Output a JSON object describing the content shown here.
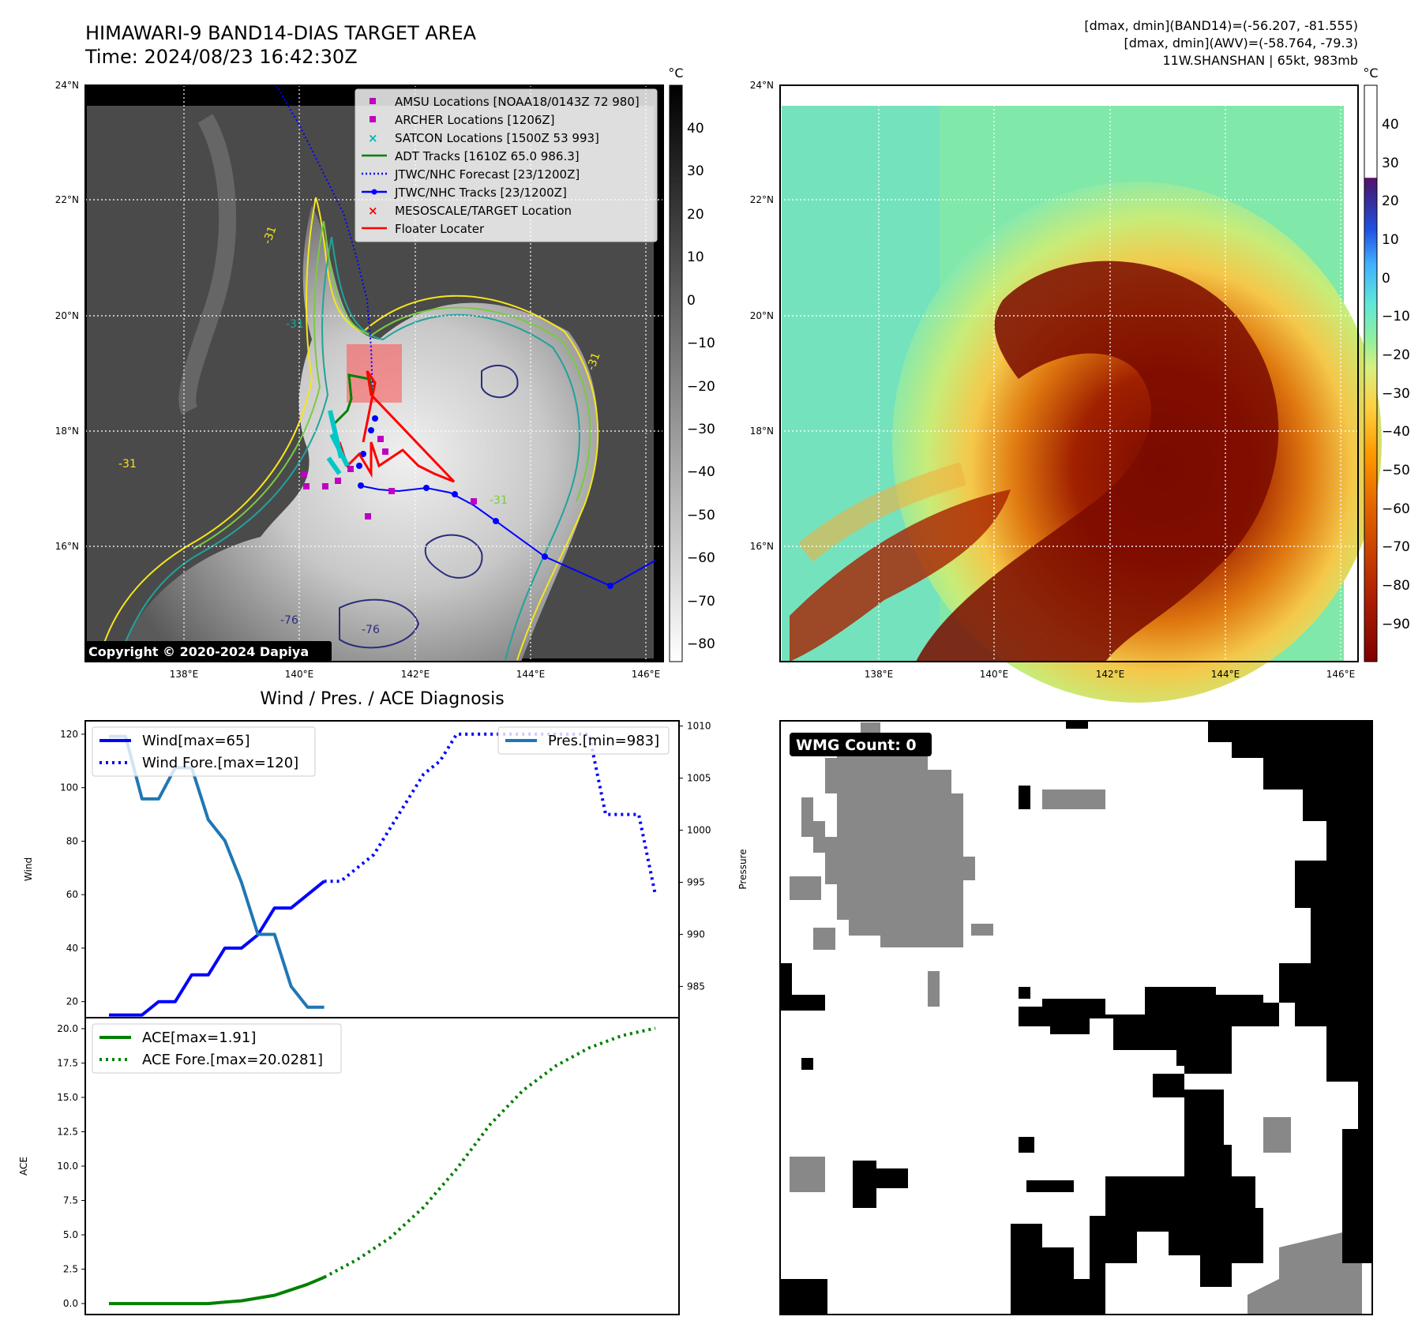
{
  "header": {
    "title_line1": "HIMAWARI-9 BAND14-DIAS TARGET AREA",
    "title_line2": "Time: 2024/08/23 16:42:30Z",
    "info_line1": "[dmax, dmin](BAND14)=(-56.207, -81.555)",
    "info_line2": "[dmax, dmin](AWV)=(-58.764, -79.3)",
    "info_line3": "11W.SHANSHAN | 65kt, 983mb"
  },
  "map_axes": {
    "lat_ticks": [
      "24°N",
      "22°N",
      "20°N",
      "18°N",
      "16°N"
    ],
    "lon_ticks": [
      "138°E",
      "140°E",
      "142°E",
      "144°E",
      "146°E"
    ],
    "copyright": "Copyright © 2020-2024 Dapiya"
  },
  "ir_colorbar": {
    "unit": "°C",
    "ticks": [
      "40",
      "30",
      "20",
      "10",
      "0",
      "−10",
      "−20",
      "−30",
      "−40",
      "−50",
      "−60",
      "−70",
      "−80"
    ]
  },
  "awv_colorbar": {
    "unit": "°C",
    "ticks": [
      "40",
      "30",
      "20",
      "10",
      "0",
      "−10",
      "−20",
      "−30",
      "−40",
      "−50",
      "−60",
      "−70",
      "−80",
      "−90"
    ],
    "colors": [
      "#7f0000",
      "#b22200",
      "#e06000",
      "#ff9900",
      "#ffd040",
      "#d8f080",
      "#90f0a0",
      "#60e8d8",
      "#40b0ff",
      "#2050e0",
      "#402080",
      "#5a1070",
      "#ffffff"
    ]
  },
  "legend": [
    {
      "label": "AMSU Locations [NOAA18/0143Z 72 980]",
      "marker": "square",
      "color": "#c000c0"
    },
    {
      "label": "ARCHER Locations [1206Z]",
      "marker": "square",
      "color": "#c000c0"
    },
    {
      "label": "SATCON Locations [1500Z 53 993]",
      "marker": "x",
      "color": "#00b8b8"
    },
    {
      "label": "ADT Tracks [1610Z 65.0 986.3]",
      "marker": "line",
      "color": "#008000"
    },
    {
      "label": "JTWC/NHC Forecast [23/1200Z]",
      "marker": "dotted",
      "color": "#0000ff"
    },
    {
      "label": "JTWC/NHC Tracks [23/1200Z]",
      "marker": "line-dot",
      "color": "#0000ff"
    },
    {
      "label": "MESOSCALE/TARGET Location",
      "marker": "x",
      "color": "#ff0000"
    },
    {
      "label": "Floater Locater",
      "marker": "line",
      "color": "#ff0000"
    }
  ],
  "contour_labels": [
    "-31",
    "-31",
    "-31",
    "-31",
    "-31",
    "-76",
    "-76"
  ],
  "wmg": {
    "label": "WMG Count: 0"
  },
  "diag": {
    "title": "Wind / Pres. / ACE Diagnosis",
    "wind_ylabel": "Wind",
    "pres_ylabel": "Pressure",
    "ace_ylabel": "ACE",
    "wind_legend": [
      "Wind[max=65]",
      "Wind Fore.[max=120]"
    ],
    "pres_legend": [
      "Pres.[min=983]"
    ],
    "ace_legend": [
      "ACE[max=1.91]",
      "ACE Fore.[max=20.0281]"
    ]
  },
  "chart_data": [
    {
      "type": "line",
      "panel": "wind-pressure",
      "ylabel": "Wind",
      "ylim": [
        14,
        125
      ],
      "yticks": [
        20,
        40,
        60,
        80,
        100,
        120
      ],
      "y2label": "Pressure",
      "y2lim": [
        982,
        1010.5
      ],
      "y2ticks": [
        985,
        990,
        995,
        1000,
        1005,
        1010
      ],
      "series": [
        {
          "name": "Wind[max=65]",
          "axis": "left",
          "style": "solid",
          "color": "#0000ff",
          "x": [
            0,
            1,
            2,
            3,
            4,
            5,
            6,
            7,
            8,
            9,
            10,
            11,
            12,
            13
          ],
          "y": [
            15,
            15,
            15,
            20,
            20,
            30,
            30,
            40,
            40,
            45,
            55,
            55,
            60,
            65
          ]
        },
        {
          "name": "Wind Fore.[max=120]",
          "axis": "left",
          "style": "dotted",
          "color": "#0000ff",
          "x": [
            13,
            14,
            15,
            16,
            17,
            18,
            19,
            20,
            21,
            22,
            23,
            24,
            25,
            26,
            27,
            28,
            29,
            30,
            31,
            32,
            33
          ],
          "y": [
            65,
            65,
            70,
            75,
            85,
            95,
            105,
            110,
            120,
            120,
            120,
            120,
            120,
            120,
            120,
            120,
            120,
            90,
            90,
            90,
            60
          ]
        },
        {
          "name": "Pres.[min=983]",
          "axis": "right",
          "style": "solid",
          "color": "#1f77b4",
          "x": [
            0,
            1,
            2,
            3,
            4,
            5,
            6,
            7,
            8,
            9,
            10,
            11,
            12,
            13
          ],
          "y": [
            1009,
            1009,
            1003,
            1003,
            1006,
            1006,
            1001,
            999,
            995,
            990,
            990,
            985,
            983,
            983
          ]
        }
      ]
    },
    {
      "type": "line",
      "panel": "ace",
      "ylabel": "ACE",
      "ylim": [
        -0.8,
        20.8
      ],
      "yticks": [
        "0.0",
        "2.5",
        "5.0",
        "7.5",
        "10.0",
        "12.5",
        "15.0",
        "17.5",
        "20.0"
      ],
      "series": [
        {
          "name": "ACE[max=1.91]",
          "style": "solid",
          "color": "#008000",
          "x": [
            0,
            1,
            2,
            3,
            4,
            5,
            6,
            7,
            8,
            9,
            10,
            11,
            12,
            13
          ],
          "y": [
            0,
            0,
            0,
            0,
            0,
            0,
            0,
            0.1,
            0.2,
            0.4,
            0.6,
            1.0,
            1.4,
            1.91
          ]
        },
        {
          "name": "ACE Fore.[max=20.0281]",
          "style": "dotted",
          "color": "#008000",
          "x": [
            13,
            15,
            17,
            19,
            21,
            23,
            25,
            27,
            29,
            31,
            33
          ],
          "y": [
            1.91,
            3.2,
            4.8,
            7.0,
            9.8,
            13.0,
            15.5,
            17.3,
            18.6,
            19.5,
            20.0281
          ]
        }
      ]
    }
  ]
}
